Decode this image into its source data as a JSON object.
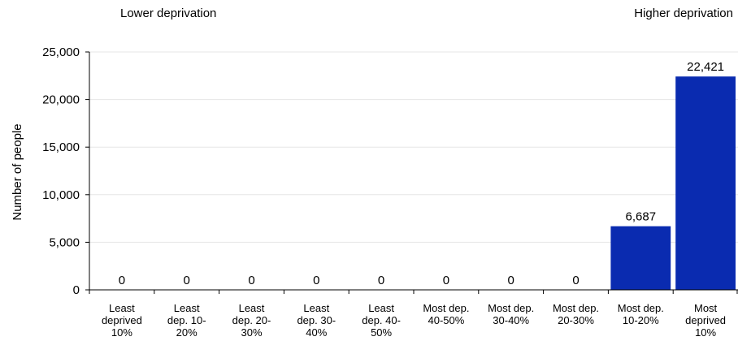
{
  "header": {
    "left": "Lower deprivation",
    "right": "Higher deprivation"
  },
  "chart_data": {
    "type": "bar",
    "ylabel": "Number of people",
    "xlabel": "",
    "ylim": [
      0,
      25000
    ],
    "yticks": [
      "0",
      "5,000",
      "10,000",
      "15,000",
      "20,000",
      "25,000"
    ],
    "ytick_values": [
      0,
      5000,
      10000,
      15000,
      20000,
      25000
    ],
    "grid": true,
    "colors": {
      "bar": "#0a2bb0",
      "grid": "#e6e6e6",
      "axis": "#000000"
    },
    "categories": [
      [
        "Least",
        "deprived",
        "10%"
      ],
      [
        "Least",
        "dep. 10-",
        "20%"
      ],
      [
        "Least",
        "dep. 20-",
        "30%"
      ],
      [
        "Least",
        "dep. 30-",
        "40%"
      ],
      [
        "Least",
        "dep. 40-",
        "50%"
      ],
      [
        "Most dep.",
        "40-50%"
      ],
      [
        "Most dep.",
        "30-40%"
      ],
      [
        "Most dep.",
        "20-30%"
      ],
      [
        "Most dep.",
        "10-20%"
      ],
      [
        "Most",
        "deprived",
        "10%"
      ]
    ],
    "values": [
      0,
      0,
      0,
      0,
      0,
      0,
      0,
      0,
      6687,
      22421
    ],
    "value_labels": [
      "0",
      "0",
      "0",
      "0",
      "0",
      "0",
      "0",
      "0",
      "6,687",
      "22,421"
    ]
  }
}
